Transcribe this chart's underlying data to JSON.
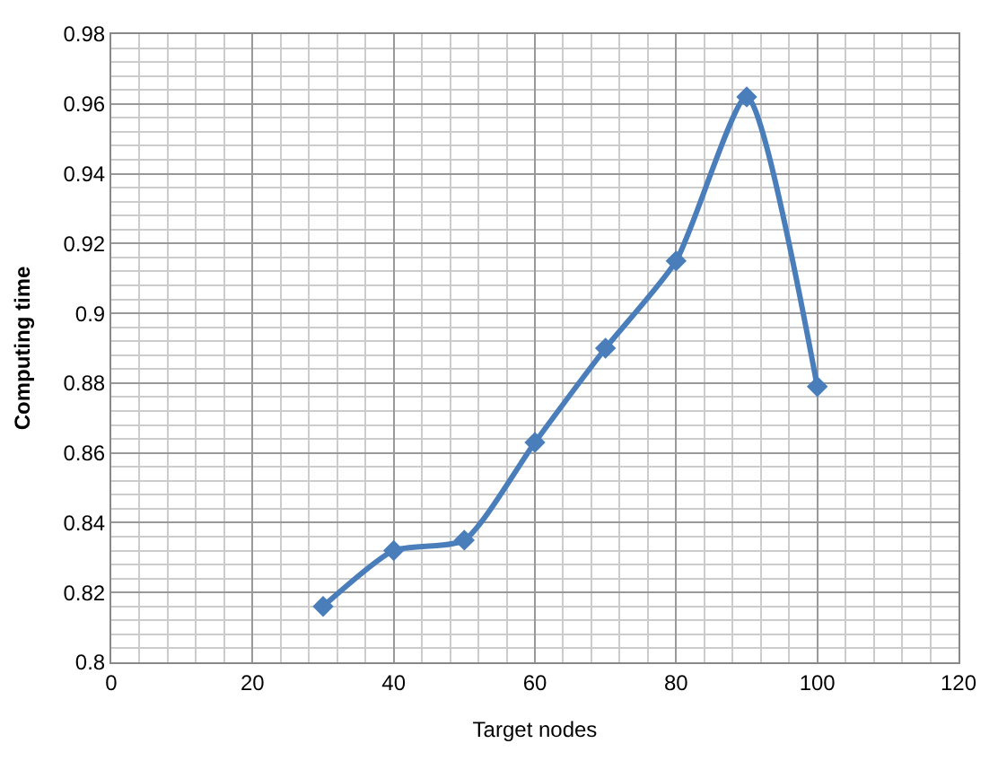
{
  "chart_data": {
    "type": "line",
    "xlabel": "Target nodes",
    "ylabel": "Computing time",
    "x": [
      30,
      40,
      50,
      60,
      70,
      80,
      90,
      100
    ],
    "series": [
      {
        "color": "#4a7ebb",
        "values": [
          0.816,
          0.832,
          0.835,
          0.863,
          0.89,
          0.915,
          0.962,
          0.879
        ]
      }
    ],
    "xlim": [
      0,
      120
    ],
    "xticks": [
      0,
      20,
      40,
      60,
      80,
      100,
      120
    ],
    "ylim": [
      0.8,
      0.98
    ],
    "yticks": [
      {
        "value": 0.8,
        "label": "0.8"
      },
      0.82,
      0.84,
      0.86,
      0.88,
      {
        "value": 0.9,
        "label": "0.9"
      },
      0.92,
      0.94,
      0.96,
      0.98
    ],
    "grid": true,
    "marker": "diamond",
    "line_style": "solid",
    "legend": false
  }
}
